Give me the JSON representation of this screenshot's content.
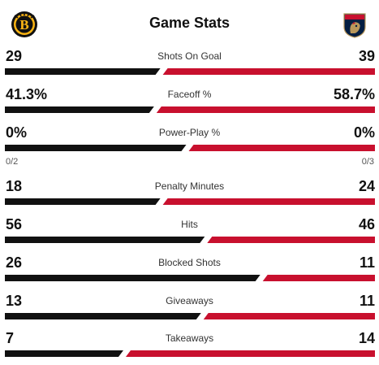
{
  "header": {
    "title": "Game Stats",
    "home_team_icon": "bruins-logo",
    "away_team_icon": "panthers-logo"
  },
  "colors": {
    "home": "#111111",
    "away": "#c8102e"
  },
  "stats": [
    {
      "label": "Shots On Goal",
      "home": "29",
      "away": "39",
      "home_share": 0.43
    },
    {
      "label": "Faceoff %",
      "home": "41.3%",
      "away": "58.7%",
      "home_share": 0.413
    },
    {
      "label": "Power-Play %",
      "home": "0%",
      "away": "0%",
      "home_share": 0.5,
      "home_sub": "0/2",
      "away_sub": "0/3"
    },
    {
      "label": "Penalty Minutes",
      "home": "18",
      "away": "24",
      "home_share": 0.43
    },
    {
      "label": "Hits",
      "home": "56",
      "away": "46",
      "home_share": 0.55
    },
    {
      "label": "Blocked Shots",
      "home": "26",
      "away": "11",
      "home_share": 0.7
    },
    {
      "label": "Giveaways",
      "home": "13",
      "away": "11",
      "home_share": 0.54
    },
    {
      "label": "Takeaways",
      "home": "7",
      "away": "14",
      "home_share": 0.33
    }
  ]
}
